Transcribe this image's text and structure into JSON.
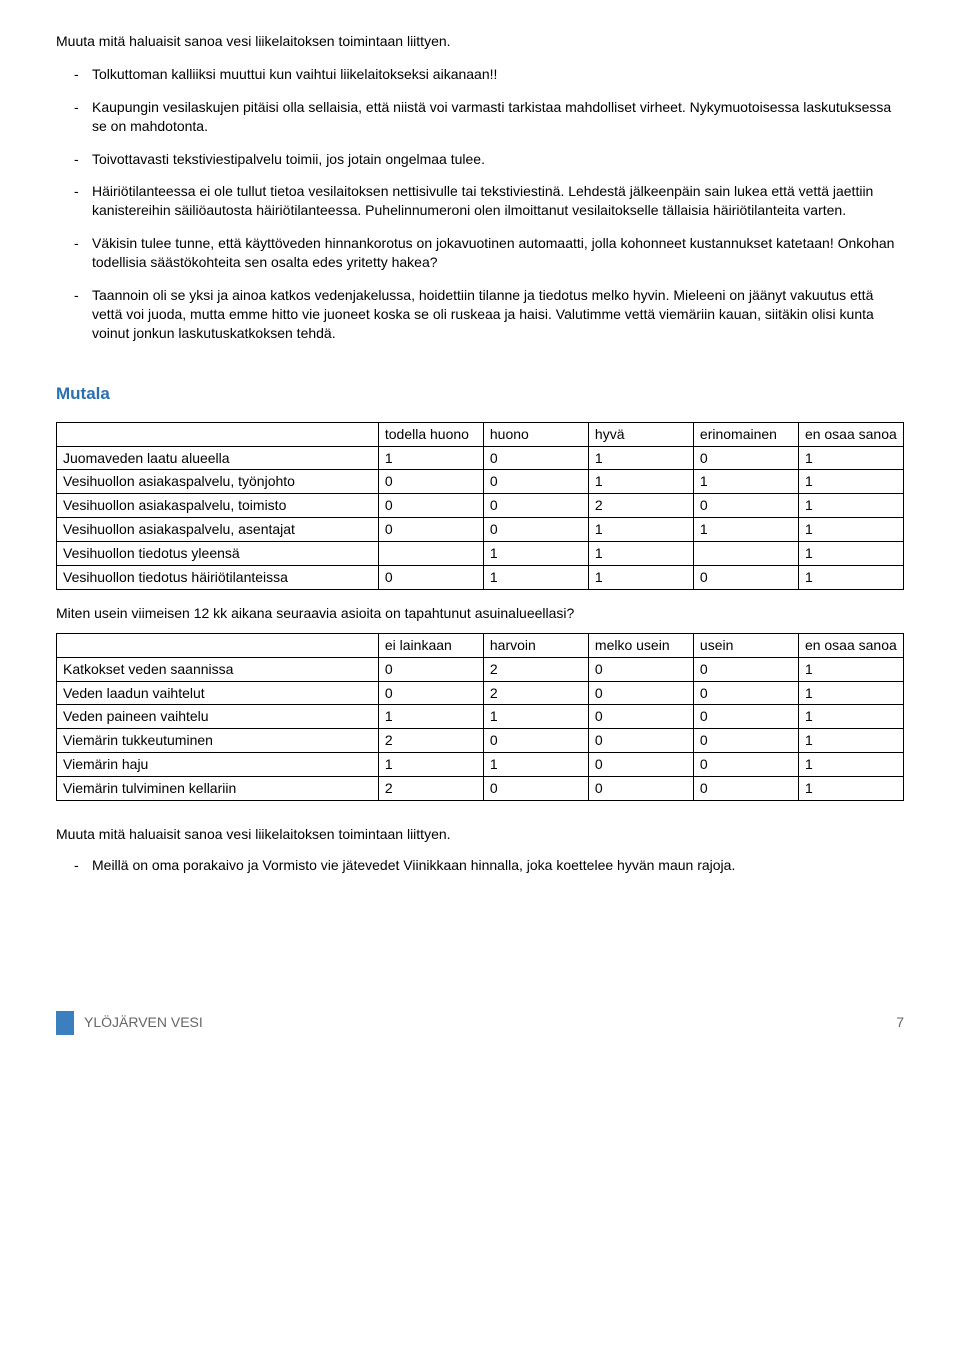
{
  "intro1": "Muuta mitä haluaisit sanoa vesi liikelaitoksen toimintaan liittyen.",
  "bullets1": [
    "Tolkuttoman kalliiksi muuttui kun vaihtui liikelaitokseksi aikanaan!!",
    "Kaupungin vesilaskujen pitäisi olla sellaisia, että niistä voi varmasti tarkistaa mahdolliset virheet. Nykymuotoisessa laskutuksessa se on mahdotonta.",
    "Toivottavasti tekstiviestipalvelu toimii, jos jotain ongelmaa tulee.",
    "Häiriötilanteessa ei ole tullut tietoa vesilaitoksen nettisivulle tai tekstiviestinä. Lehdestä jälkeenpäin sain lukea että vettä jaettiin kanistereihin säiliöautosta häiriötilanteessa. Puhelinnumeroni olen ilmoittanut vesilaitokselle tällaisia häiriötilanteita varten.",
    "Väkisin tulee tunne, että käyttöveden hinnankorotus on jokavuotinen automaatti, jolla kohonneet kustannukset katetaan! Onkohan todellisia säästökohteita sen osalta edes yritetty hakea?",
    "Taannoin oli se yksi ja ainoa katkos vedenjakelussa, hoidettiin tilanne ja tiedotus melko hyvin. Mieleeni on jäänyt vakuutus että vettä voi juoda, mutta emme hitto vie juoneet koska se oli ruskeaa ja haisi. Valutimme vettä viemäriin kauan, siitäkin olisi kunta voinut jonkun laskutuskatkoksen tehdä."
  ],
  "sectionTitle": "Mutala",
  "table1": {
    "headers": [
      "",
      "todella huono",
      "huono",
      "hyvä",
      "erinomainen",
      "en osaa sanoa"
    ],
    "rows": [
      [
        "Juomaveden laatu alueella",
        "1",
        "0",
        "1",
        "0",
        "1"
      ],
      [
        "Vesihuollon asiakaspalvelu, työnjohto",
        "0",
        "0",
        "1",
        "1",
        "1"
      ],
      [
        "Vesihuollon asiakaspalvelu, toimisto",
        "0",
        "0",
        "2",
        "0",
        "1"
      ],
      [
        "Vesihuollon asiakaspalvelu, asentajat",
        "0",
        "0",
        "1",
        "1",
        "1"
      ],
      [
        "Vesihuollon tiedotus yleensä",
        "",
        "1",
        "1",
        "",
        "1"
      ],
      [
        "Vesihuollon tiedotus häiriötilanteissa",
        "0",
        "1",
        "1",
        "0",
        "1"
      ]
    ]
  },
  "between": "Miten usein viimeisen 12 kk aikana seuraavia asioita on tapahtunut asuinalueellasi?",
  "table2": {
    "headers": [
      "",
      "ei lainkaan",
      "harvoin",
      "melko usein",
      "usein",
      "en osaa sanoa"
    ],
    "rows": [
      [
        "Katkokset veden saannissa",
        "0",
        "2",
        "0",
        "0",
        "1"
      ],
      [
        "Veden laadun vaihtelut",
        "0",
        "2",
        "0",
        "0",
        "1"
      ],
      [
        "Veden paineen vaihtelu",
        "1",
        "1",
        "0",
        "0",
        "1"
      ],
      [
        "Viemärin tukkeutuminen",
        "2",
        "0",
        "0",
        "0",
        "1"
      ],
      [
        "Viemärin haju",
        "1",
        "1",
        "0",
        "0",
        "1"
      ],
      [
        "Viemärin tulviminen kellariin",
        "2",
        "0",
        "0",
        "0",
        "1"
      ]
    ]
  },
  "lower": "Muuta mitä haluaisit sanoa vesi liikelaitoksen toimintaan liittyen.",
  "bullets2": [
    "Meillä on oma porakaivo ja Vormisto vie jätevedet Viinikkaan hinnalla, joka koettelee hyvän maun rajoja."
  ],
  "footer": {
    "text": "YLÖJÄRVEN VESI",
    "page": "7"
  }
}
